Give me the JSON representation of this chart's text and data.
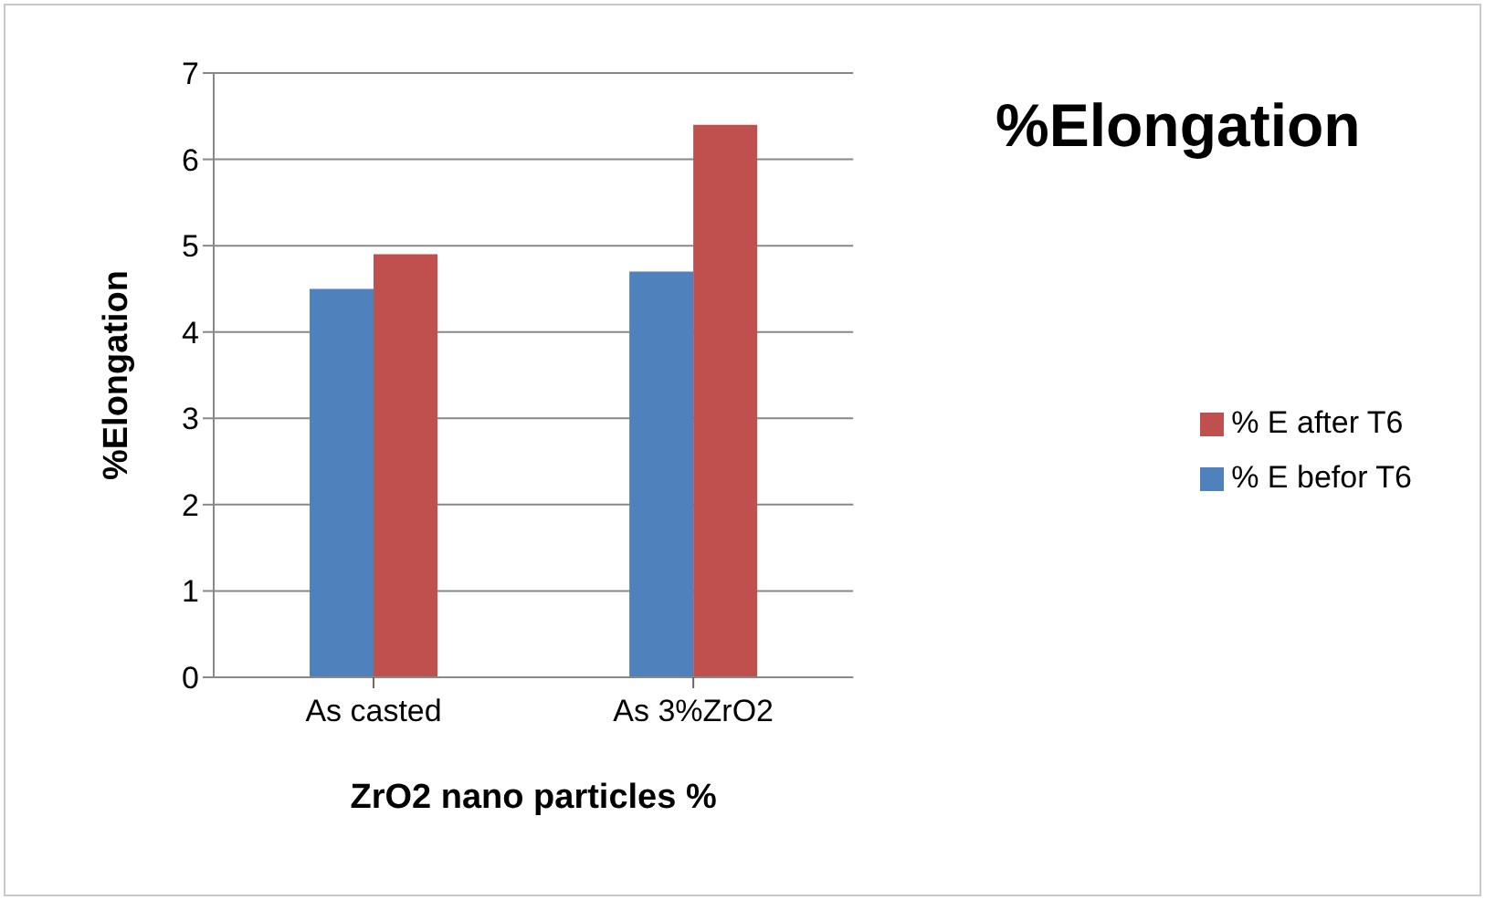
{
  "chart_data": {
    "type": "bar",
    "title": "%Elongation",
    "xlabel": "ZrO2 nano particles %",
    "ylabel": "%Elongation",
    "categories": [
      "As casted",
      "As 3%ZrO2"
    ],
    "series": [
      {
        "name": "% E befor T6",
        "color": "#4f81bd",
        "values": [
          4.5,
          4.7
        ]
      },
      {
        "name": "% E after T6",
        "color": "#c0504d",
        "values": [
          4.9,
          6.4
        ]
      }
    ],
    "ylim": [
      0,
      7
    ],
    "yticks": [
      0,
      1,
      2,
      3,
      4,
      5,
      6,
      7
    ],
    "grid": "y",
    "legend": "right"
  }
}
